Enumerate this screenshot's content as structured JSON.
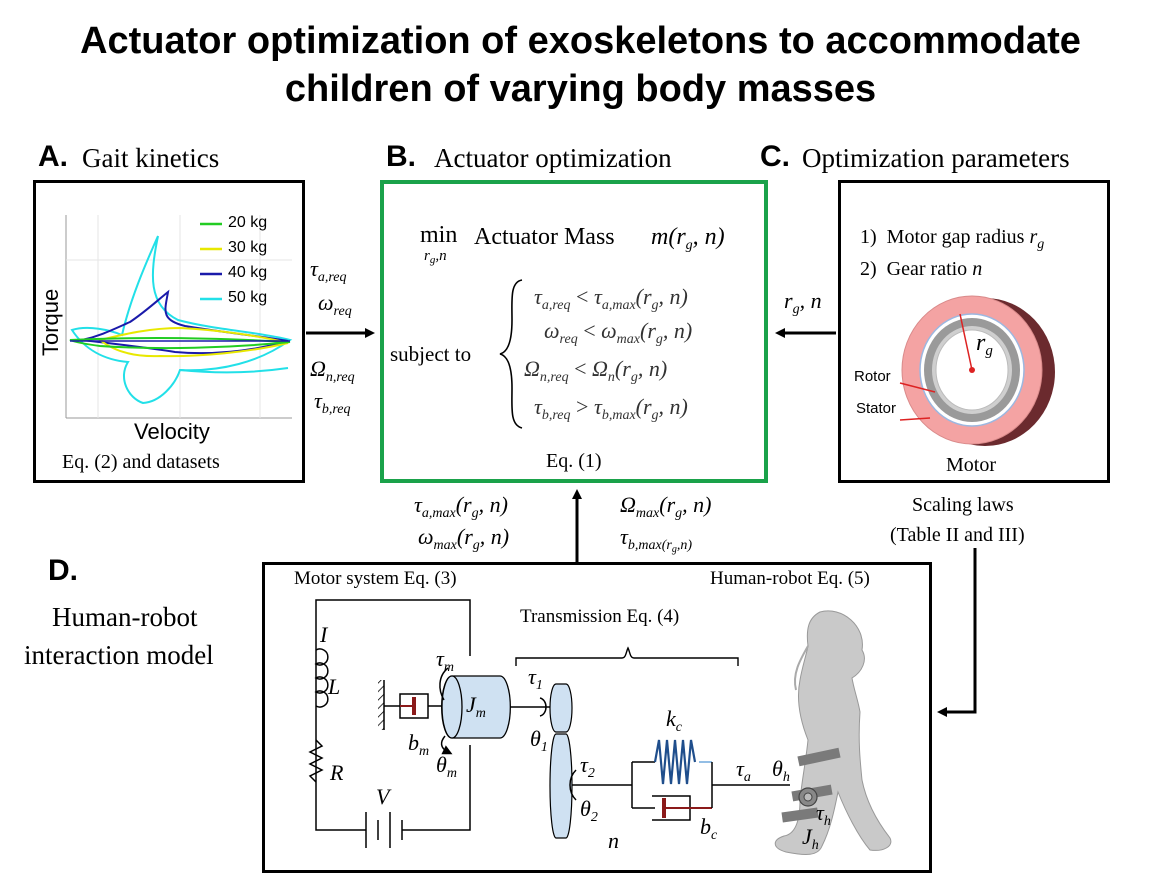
{
  "title": {
    "line1": "Actuator optimization of exoskeletons to accommodate",
    "line2": "children of varying body masses"
  },
  "panelA": {
    "letter": "A.",
    "title": "Gait kinetics",
    "ylabel": "Torque",
    "xlabel": "Velocity",
    "caption": "Eq. (2) and datasets",
    "legend": [
      {
        "label": "20 kg",
        "color": "#22cc22"
      },
      {
        "label": "30 kg",
        "color": "#e8e800"
      },
      {
        "label": "40 kg",
        "color": "#1a1aaa"
      },
      {
        "label": "50 kg",
        "color": "#22e0e8"
      }
    ]
  },
  "arrowA": {
    "top1": "τ",
    "top1sub": "a,req",
    "top2": "ω",
    "top2sub": "req",
    "bot1": "Ω",
    "bot1sub": "n,req",
    "bot2": "τ",
    "bot2sub": "b,req"
  },
  "panelB": {
    "letter": "B.",
    "title": "Actuator optimization",
    "objective_min": "min",
    "objective_min_sub": "r",
    "objective_min_sub_g": "g",
    "objective_min_sub_n": ",n",
    "objective_text": "Actuator Mass",
    "objective_fn": "m(r",
    "objective_fn_sub": "g",
    "objective_fn_end": ", n)",
    "subject_to": "subject to",
    "constraints": [
      {
        "lhs": "τ",
        "lhs_sub": "a,req",
        "op": "<",
        "rhs": "τ",
        "rhs_sub": "a,max",
        "args": "(r",
        "args_sub": "g",
        "args_end": ", n)"
      },
      {
        "lhs": "ω",
        "lhs_sub": "req",
        "op": "<",
        "rhs": "ω",
        "rhs_sub": "max",
        "args": "(r",
        "args_sub": "g",
        "args_end": ", n)"
      },
      {
        "lhs": "Ω",
        "lhs_sub": "n,req",
        "op": "<",
        "rhs": "Ω",
        "rhs_sub": "n",
        "args": "(r",
        "args_sub": "g",
        "args_end": ", n)"
      },
      {
        "lhs": "τ",
        "lhs_sub": "b,req",
        "op": ">",
        "rhs": "τ",
        "rhs_sub": "b,max",
        "args": "(r",
        "args_sub": "g",
        "args_end": ", n)"
      }
    ],
    "eq_label": "Eq. (1)"
  },
  "arrowC": {
    "label": "r",
    "label_sub": "g",
    "label_end": ", n"
  },
  "panelC": {
    "letter": "C.",
    "title": "Optimization parameters",
    "item1_num": "1)",
    "item1": "Motor gap radius",
    "item1_sym": "r",
    "item1_sub": "g",
    "item2_num": "2)",
    "item2": "Gear ratio",
    "item2_sym": "n",
    "rg_label": "r",
    "rg_sub": "g",
    "rotor": "Rotor",
    "stator": "Stator",
    "caption": "Motor"
  },
  "scaling": {
    "line1": "Scaling laws",
    "line2": "(Table II and III)"
  },
  "arrowD": {
    "left1": "τ",
    "left1sub": "a,max",
    "left1args": "(r",
    "left1argsub": "g",
    "left1end": ", n)",
    "left2": "ω",
    "left2sub": "max",
    "left2args": "(r",
    "left2argsub": "g",
    "left2end": ", n)",
    "right1": "Ω",
    "right1sub": "max",
    "right1args": "(r",
    "right1argsub": "g",
    "right1end": ", n)",
    "right2": "τ",
    "right2sub": "b,max(r",
    "right2subg": "g",
    "right2subend": ",n)"
  },
  "panelD": {
    "letter": "D.",
    "title_line1": "Human-robot",
    "title_line2": "interaction  model",
    "motor_label": "Motor system Eq. (3)",
    "hr_label": "Human-robot Eq. (5)",
    "trans_label": "Transmission Eq. (4)",
    "sym_I": "I",
    "sym_L": "L",
    "sym_R": "R",
    "sym_V": "V",
    "tau_m": "τ",
    "tau_m_sub": "m",
    "J_m": "J",
    "J_m_sub": "m",
    "b_m": "b",
    "b_m_sub": "m",
    "theta_m": "θ",
    "theta_m_sub": "m",
    "tau_1": "τ",
    "tau_1_sub": "1",
    "theta_1": "θ",
    "theta_1_sub": "1",
    "tau_2": "τ",
    "tau_2_sub": "2",
    "theta_2": "θ",
    "theta_2_sub": "2",
    "n": "n",
    "k_c": "k",
    "k_c_sub": "c",
    "b_c": "b",
    "b_c_sub": "c",
    "tau_a": "τ",
    "tau_a_sub": "a",
    "theta_h": "θ",
    "theta_h_sub": "h",
    "tau_h": "τ",
    "tau_h_sub": "h",
    "J_h": "J",
    "J_h_sub": "h"
  }
}
